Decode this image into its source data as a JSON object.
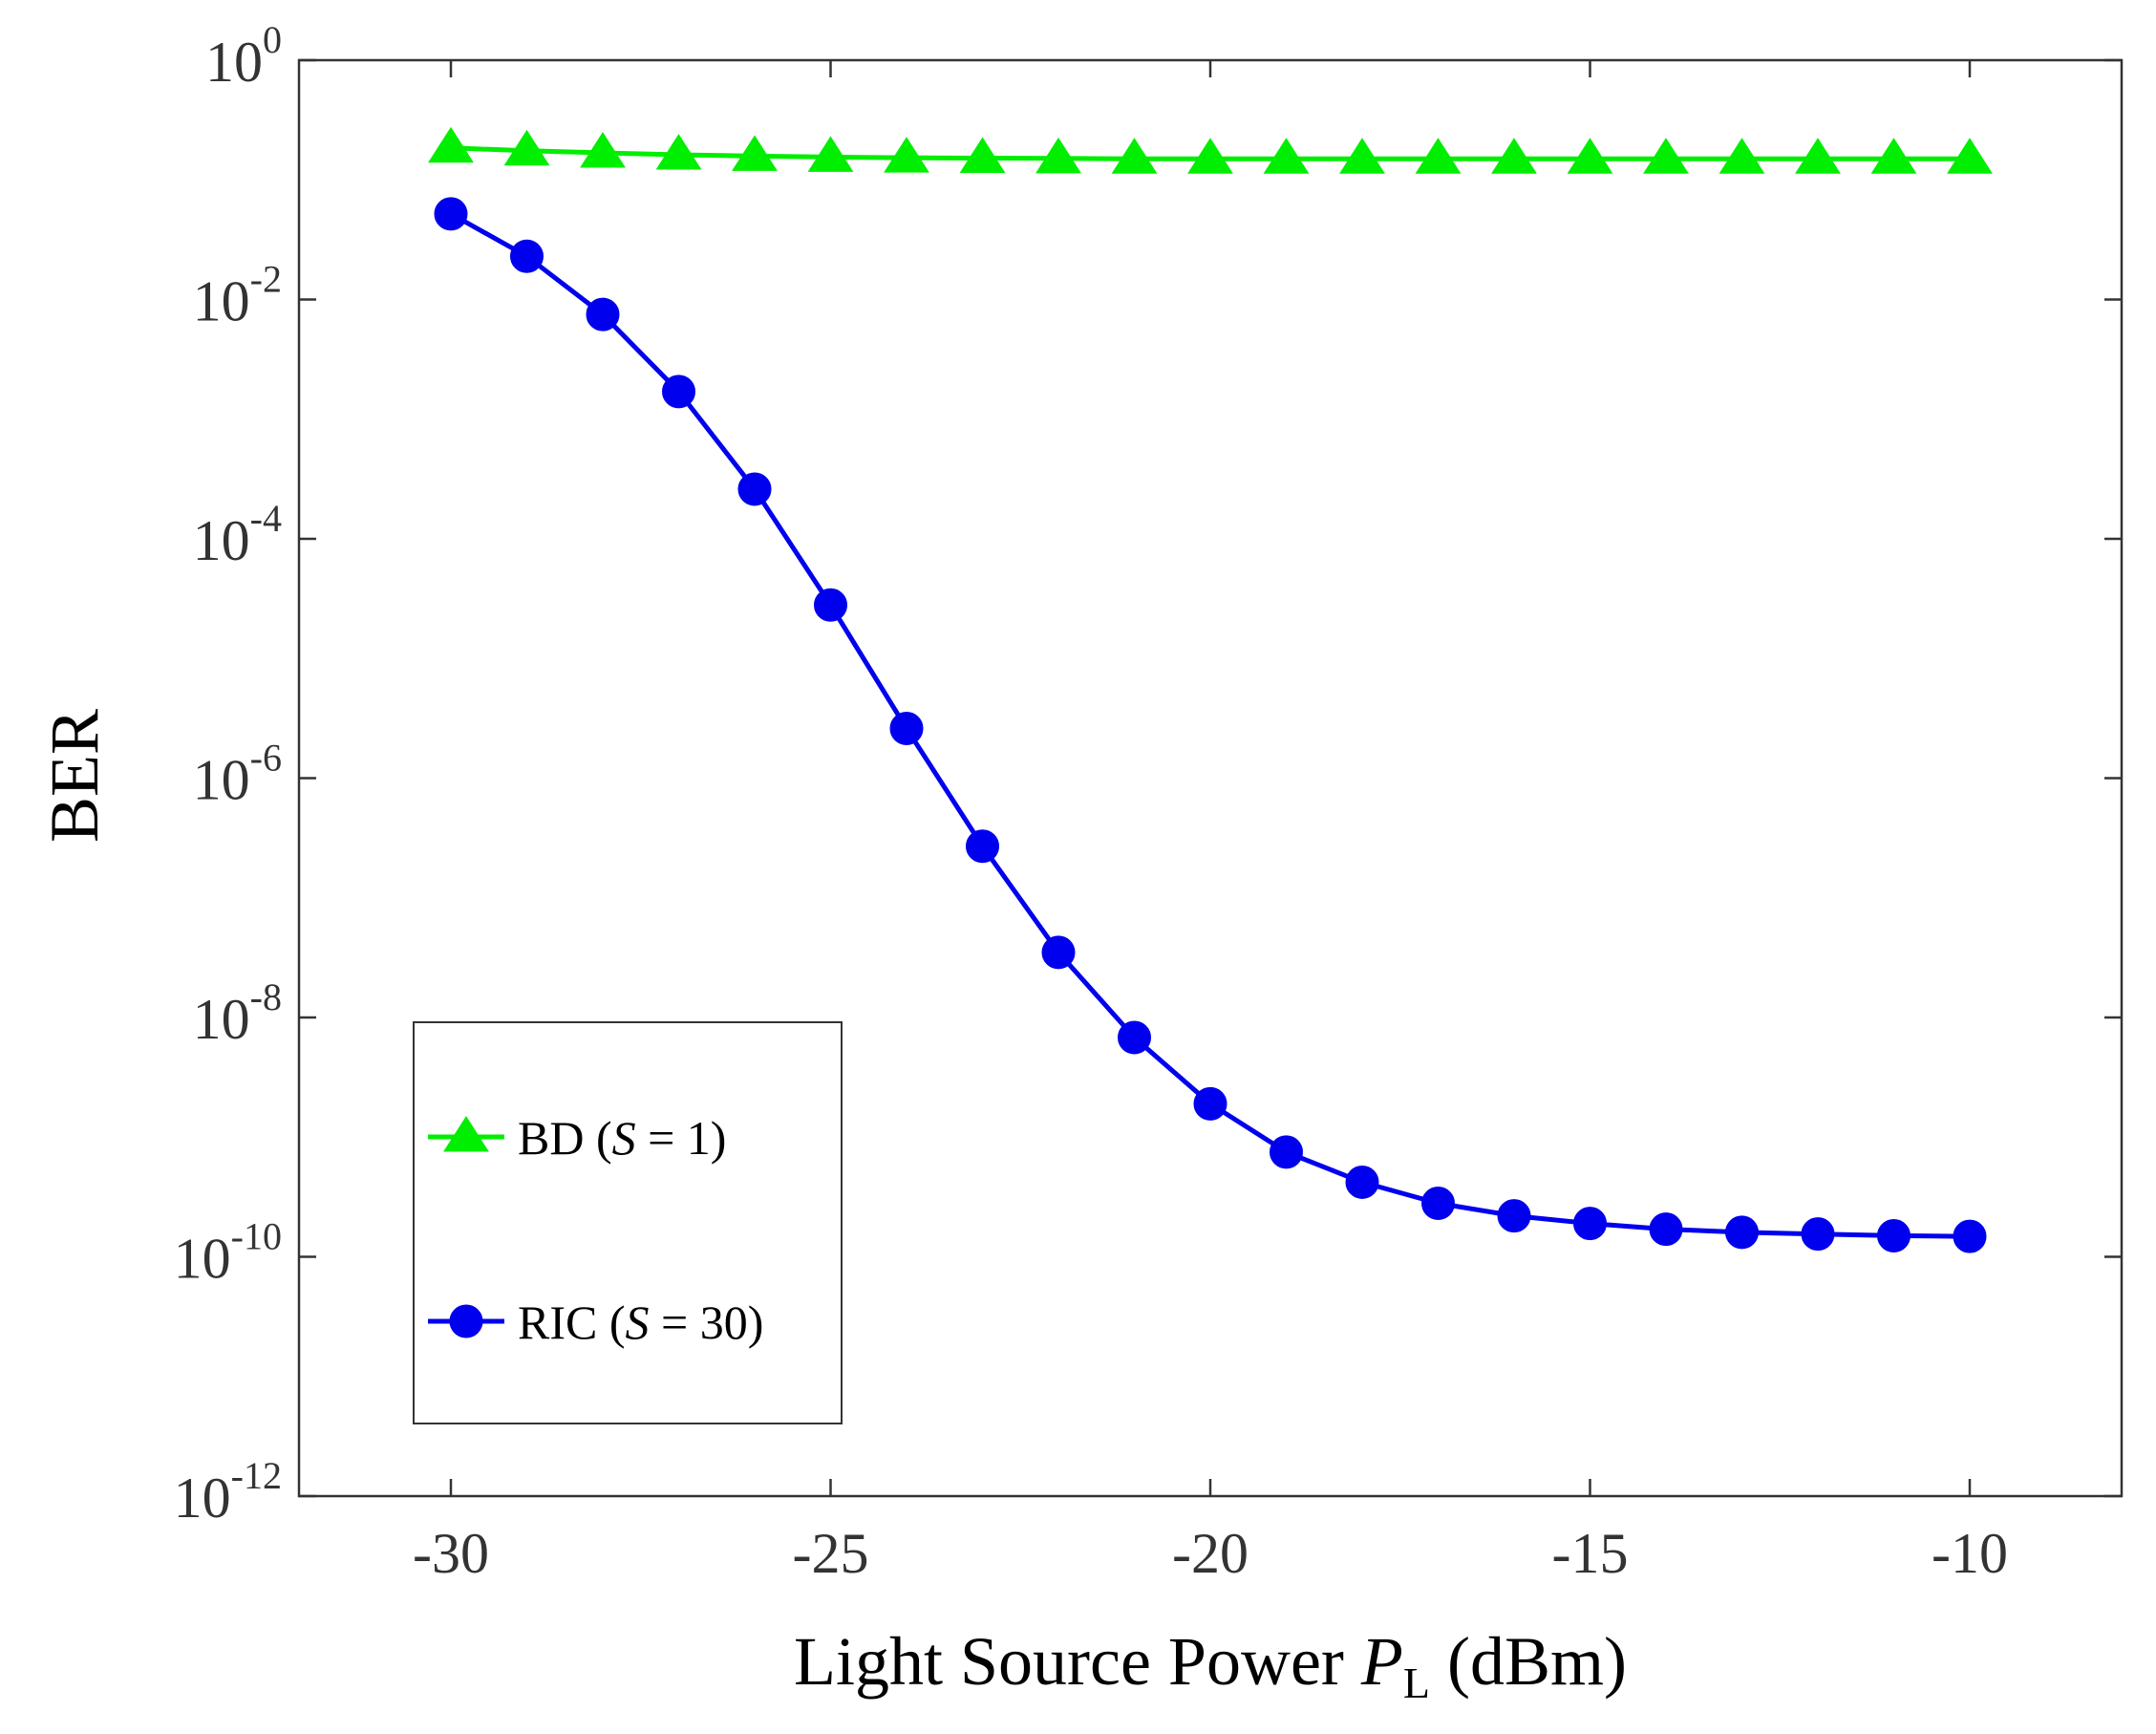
{
  "chart_data": {
    "type": "line",
    "yscale": "log",
    "title": "",
    "xlabel": {
      "main": "Light Source Power ",
      "var": "P",
      "sub": "L",
      "unit": " (dBm)"
    },
    "ylabel": "BER",
    "xlim": [
      -32,
      -8
    ],
    "ylim_exponent": [
      -12,
      0
    ],
    "xticks": [
      -30,
      -25,
      -20,
      -15,
      -10
    ],
    "xtick_labels": [
      "-30",
      "-25",
      "-20",
      "-15",
      "-10"
    ],
    "yticks_exponent": [
      0,
      -2,
      -4,
      -6,
      -8,
      -10,
      -12
    ],
    "ytick_labels": [
      {
        "base": "10",
        "exp": "0"
      },
      {
        "base": "10",
        "exp": "-2"
      },
      {
        "base": "10",
        "exp": "-4"
      },
      {
        "base": "10",
        "exp": "-6"
      },
      {
        "base": "10",
        "exp": "-8"
      },
      {
        "base": "10",
        "exp": "-10"
      },
      {
        "base": "10",
        "exp": "-12"
      }
    ],
    "x": [
      -30,
      -29,
      -28,
      -27,
      -26,
      -25,
      -24,
      -23,
      -22,
      -21,
      -20,
      -19,
      -18,
      -17,
      -16,
      -15,
      -14,
      -13,
      -12,
      -11,
      -10
    ],
    "series": [
      {
        "name": "BD (S = 1)",
        "legend": {
          "pre": "BD (",
          "var": "S",
          "post": " = 1)"
        },
        "color": "#00ee00",
        "marker": "triangle",
        "values": [
          0.185,
          0.175,
          0.168,
          0.162,
          0.158,
          0.155,
          0.153,
          0.152,
          0.151,
          0.15,
          0.15,
          0.15,
          0.15,
          0.15,
          0.15,
          0.15,
          0.15,
          0.15,
          0.15,
          0.15,
          0.15
        ]
      },
      {
        "name": "RIC (S = 30)",
        "legend": {
          "pre": "RIC (",
          "var": "S",
          "post": " = 30)"
        },
        "color": "#0000ee",
        "marker": "circle",
        "values": [
          0.052,
          0.023,
          0.0075,
          0.0017,
          0.00026,
          2.8e-05,
          2.6e-06,
          2.7e-07,
          3.5e-08,
          6.8e-09,
          1.9e-09,
          7.5e-10,
          4.2e-10,
          2.8e-10,
          2.2e-10,
          1.9e-10,
          1.7e-10,
          1.6e-10,
          1.55e-10,
          1.5e-10,
          1.48e-10
        ]
      }
    ],
    "legend_position": "bottom-left",
    "grid": false
  }
}
